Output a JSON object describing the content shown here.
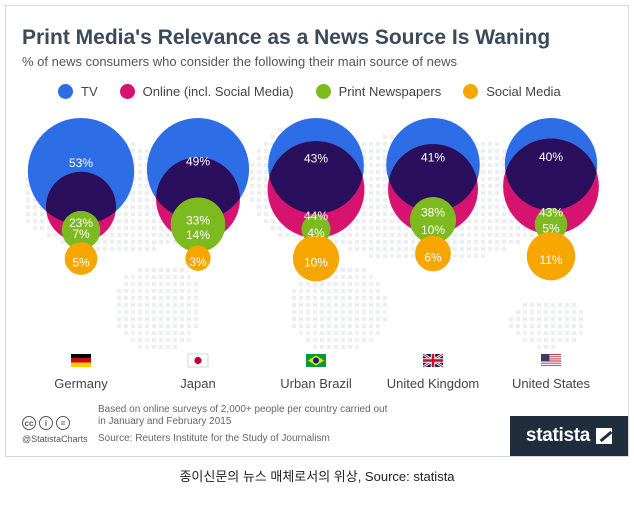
{
  "chart_data": {
    "type": "bubble",
    "title": "Print Media's Relevance as a News Source Is Waning",
    "subtitle": "% of news consumers who consider the following their main source of news",
    "unit": "%",
    "legend_placement": "top",
    "series": [
      {
        "name": "TV",
        "color": "#2d6ee6"
      },
      {
        "name": "Online (incl. Social Media)",
        "color": "#d6136f"
      },
      {
        "name": "Print Newspapers",
        "color": "#7dba1f"
      },
      {
        "name": "Social Media",
        "color": "#f7a600"
      }
    ],
    "categories": [
      "Germany",
      "Japan",
      "Urban Brazil",
      "United Kingdom",
      "United States"
    ],
    "values": {
      "TV": [
        53,
        49,
        43,
        41,
        40
      ],
      "Online (incl. Social Media)": [
        23,
        33,
        44,
        38,
        43
      ],
      "Print Newspapers": [
        7,
        14,
        4,
        10,
        5
      ],
      "Social Media": [
        5,
        3,
        10,
        6,
        11
      ]
    },
    "labels": {
      "TV": [
        "53%",
        "49%",
        "43%",
        "41%",
        "40%"
      ],
      "Online (incl. Social Media)": [
        "23%",
        "33%",
        "44%",
        "38%",
        "43%"
      ],
      "Print Newspapers": [
        "7%",
        "14%",
        "4%",
        "10%",
        "5%"
      ],
      "Social Media": [
        "5%",
        "3%",
        "10%",
        "6%",
        "11%"
      ]
    },
    "flags": [
      "german-flag-icon",
      "japanese-flag-icon",
      "brazilian-flag-icon",
      "british-flag-icon",
      "us-flag-icon"
    ]
  },
  "footer": {
    "handle": "@StatistaCharts",
    "note": "Based on online surveys of 2,000+ people per country carried out in January and February 2015",
    "source": "Source: Reuters Institute for the Study of Journalism",
    "brand": "statista",
    "license_icons": [
      "cc-icon",
      "by-icon",
      "nd-icon"
    ]
  },
  "caption": "종이신문의 뉴스 매체로서의 위상, Source: statista",
  "colors": {
    "title": "#3b4a5a",
    "overlap": "#2a0f5c",
    "map_dots": "#eceef1",
    "brand_bg": "#1f2d3d"
  }
}
